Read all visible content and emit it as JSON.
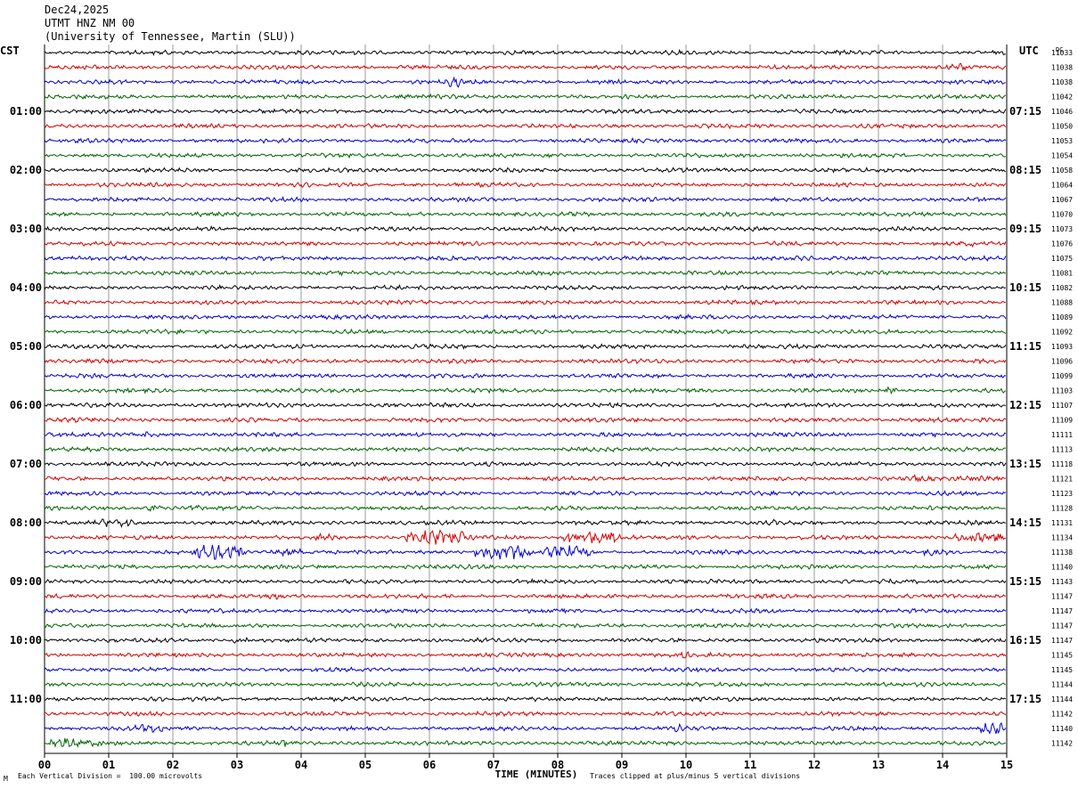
{
  "header": {
    "date": "Dec24,2025",
    "station": "UTMT HNZ NM 00",
    "network": "(University of Tennessee, Martin (SLU))"
  },
  "chart_data": {
    "type": "line",
    "title": "Dec24,2025",
    "xlabel": "TIME (MINUTES)",
    "left_axis_label": "CST",
    "right_axis_label": "UTC",
    "dc_label": "DC",
    "xlim": [
      0,
      15
    ],
    "x_ticks": [
      "00",
      "01",
      "02",
      "03",
      "04",
      "05",
      "06",
      "07",
      "08",
      "09",
      "10",
      "11",
      "12",
      "13",
      "14",
      "15"
    ],
    "trace_colors": [
      "#000000",
      "#d40000",
      "#0000cc",
      "#006400"
    ],
    "rows_per_hour": 4,
    "hour_labels_cst": [
      "01:00",
      "02:00",
      "03:00",
      "04:00",
      "05:00",
      "06:00",
      "07:00",
      "08:00",
      "09:00",
      "10:00",
      "11:00"
    ],
    "hour_labels_utc": [
      "07:15",
      "08:15",
      "09:15",
      "10:15",
      "11:15",
      "12:15",
      "13:15",
      "14:15",
      "15:15",
      "16:15",
      "17:15"
    ],
    "dc_offsets": [
      11033,
      11038,
      11038,
      11042,
      11046,
      11050,
      11053,
      11054,
      11058,
      11064,
      11067,
      11070,
      11073,
      11076,
      11075,
      11081,
      11082,
      11088,
      11089,
      11092,
      11093,
      11096,
      11099,
      11103,
      11107,
      11109,
      11111,
      11113,
      11118,
      11121,
      11123,
      11128,
      11131,
      11134,
      11138,
      11140,
      11143,
      11147,
      11147,
      11147,
      11147,
      11145,
      11145,
      11144,
      11144,
      11142,
      11140,
      11142
    ],
    "events": [
      {
        "row": 1,
        "start_min": 14.1,
        "end_min": 14.5,
        "amp": 1.8
      },
      {
        "row": 2,
        "start_min": 6.3,
        "end_min": 6.5,
        "amp": 2.5
      },
      {
        "row": 13,
        "start_min": 14.3,
        "end_min": 14.5,
        "amp": 1.6
      },
      {
        "row": 23,
        "start_min": 13.1,
        "end_min": 13.3,
        "amp": 1.8
      },
      {
        "row": 26,
        "start_min": 1.5,
        "end_min": 1.8,
        "amp": 1.7
      },
      {
        "row": 29,
        "start_min": 13.5,
        "end_min": 13.7,
        "amp": 1.5
      },
      {
        "row": 29,
        "start_min": 14.2,
        "end_min": 15.0,
        "amp": 1.5
      },
      {
        "row": 31,
        "start_min": 1.6,
        "end_min": 1.8,
        "amp": 2.2
      },
      {
        "row": 31,
        "start_min": 2.1,
        "end_min": 2.4,
        "amp": 1.5
      },
      {
        "row": 32,
        "start_min": 0.9,
        "end_min": 1.4,
        "amp": 2.0
      },
      {
        "row": 32,
        "start_min": 11.2,
        "end_min": 11.4,
        "amp": 1.6
      },
      {
        "row": 33,
        "start_min": 4.2,
        "end_min": 4.5,
        "amp": 1.8
      },
      {
        "row": 33,
        "start_min": 5.6,
        "end_min": 6.7,
        "amp": 3.2
      },
      {
        "row": 33,
        "start_min": 8.0,
        "end_min": 9.0,
        "amp": 2.8
      },
      {
        "row": 33,
        "start_min": 14.2,
        "end_min": 15.0,
        "amp": 2.4
      },
      {
        "row": 34,
        "start_min": 2.3,
        "end_min": 3.1,
        "amp": 3.5
      },
      {
        "row": 34,
        "start_min": 3.4,
        "end_min": 4.2,
        "amp": 1.8
      },
      {
        "row": 34,
        "start_min": 6.7,
        "end_min": 7.6,
        "amp": 3.5
      },
      {
        "row": 34,
        "start_min": 7.8,
        "end_min": 8.6,
        "amp": 2.6
      },
      {
        "row": 34,
        "start_min": 13.7,
        "end_min": 14.1,
        "amp": 1.6
      },
      {
        "row": 37,
        "start_min": 3.5,
        "end_min": 3.7,
        "amp": 1.6
      },
      {
        "row": 40,
        "start_min": 2.9,
        "end_min": 3.2,
        "amp": 1.7
      },
      {
        "row": 41,
        "start_min": 9.8,
        "end_min": 10.1,
        "amp": 1.5
      },
      {
        "row": 46,
        "start_min": 1.4,
        "end_min": 1.9,
        "amp": 1.8
      },
      {
        "row": 46,
        "start_min": 9.8,
        "end_min": 10.0,
        "amp": 1.8
      },
      {
        "row": 46,
        "start_min": 14.6,
        "end_min": 15.0,
        "amp": 2.6
      },
      {
        "row": 47,
        "start_min": 0.0,
        "end_min": 0.9,
        "amp": 2.2
      },
      {
        "row": 47,
        "start_min": 3.6,
        "end_min": 3.9,
        "amp": 1.8
      }
    ]
  },
  "footer": {
    "vertical_division": "Each Vertical Division =  100.00 microvolts",
    "clipping_note": "Traces clipped at plus/minus 5 vertical divisions",
    "corner_mark": "M"
  }
}
